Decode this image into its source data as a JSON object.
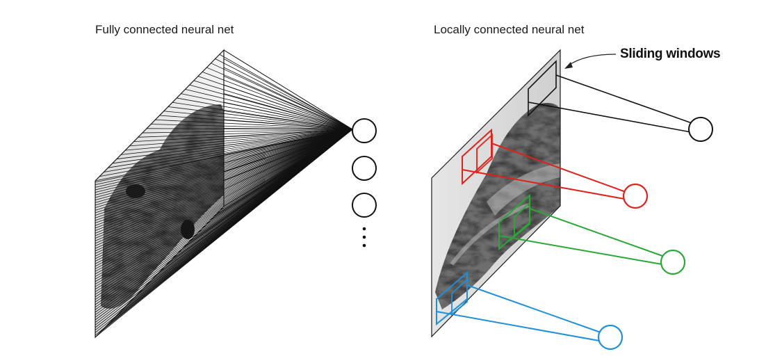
{
  "left_panel": {
    "title": "Fully connected neural net",
    "neurons": 3,
    "has_ellipsis": true
  },
  "right_panel": {
    "title": "Locally connected neural net",
    "callout": "Sliding windows",
    "windows": [
      {
        "name": "black-window",
        "color": "#111111"
      },
      {
        "name": "red-window",
        "color": "#e0201b"
      },
      {
        "name": "green-window",
        "color": "#2aa836"
      },
      {
        "name": "blue-window",
        "color": "#1e8fd8"
      }
    ]
  },
  "colors": {
    "line": "#111111",
    "red": "#e0201b",
    "green": "#2aa836",
    "blue": "#1e8fd8"
  }
}
